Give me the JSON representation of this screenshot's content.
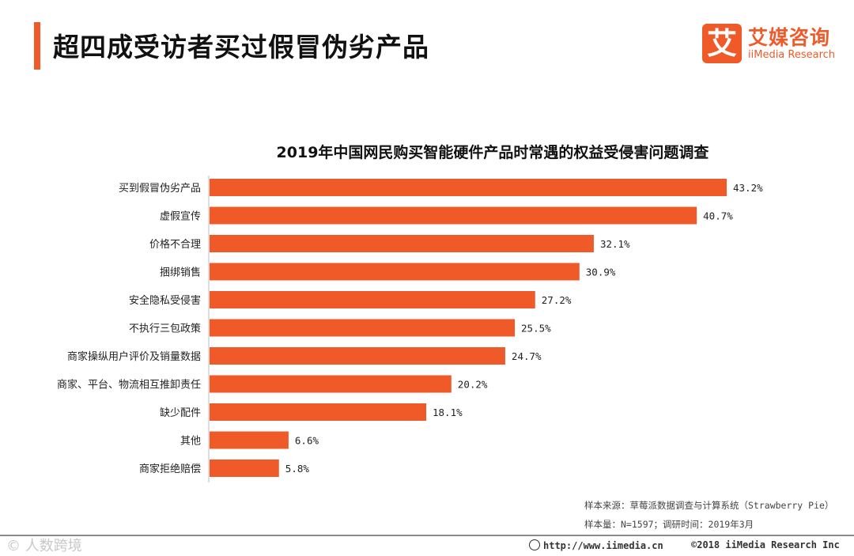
{
  "page": {
    "title": "超四成受访者买过假冒伪劣产品"
  },
  "logo": {
    "mark": "艾",
    "name_cn": "艾媒咨询",
    "name_en": "iiMedia Research"
  },
  "colors": {
    "accent": "#f05a28",
    "bar": "#f05a28"
  },
  "chart_data": {
    "type": "bar",
    "orientation": "horizontal",
    "title": "2019年中国网民购买智能硬件产品时常遇的权益受侵害问题调查",
    "categories": [
      "买到假冒伪劣产品",
      "虚假宣传",
      "价格不合理",
      "捆绑销售",
      "安全隐私受侵害",
      "不执行三包政策",
      "商家操纵用户评价及销量数据",
      "商家、平台、物流相互推卸责任",
      "缺少配件",
      "其他",
      "商家拒绝赔偿"
    ],
    "values": [
      43.2,
      40.7,
      32.1,
      30.9,
      27.2,
      25.5,
      24.7,
      20.2,
      18.1,
      6.6,
      5.8
    ],
    "labels": [
      "43.2%",
      "40.7%",
      "32.1%",
      "30.9%",
      "27.2%",
      "25.5%",
      "24.7%",
      "20.2%",
      "18.1%",
      "6.6%",
      "5.8%"
    ],
    "unit": "%",
    "xlim": [
      0,
      43.2
    ],
    "xlabel": "",
    "ylabel": "",
    "grid": false,
    "legend": "none"
  },
  "source": {
    "line1": "样本来源：草莓派数据调查与计算系统（Strawberry Pie）",
    "line2": "样本量：N=1597；调研时间：2019年3月"
  },
  "footer": {
    "watermark": "© 人数跨境",
    "url": "http://www.iimedia.cn",
    "copyright": "©2018  iiMedia Research  Inc"
  }
}
